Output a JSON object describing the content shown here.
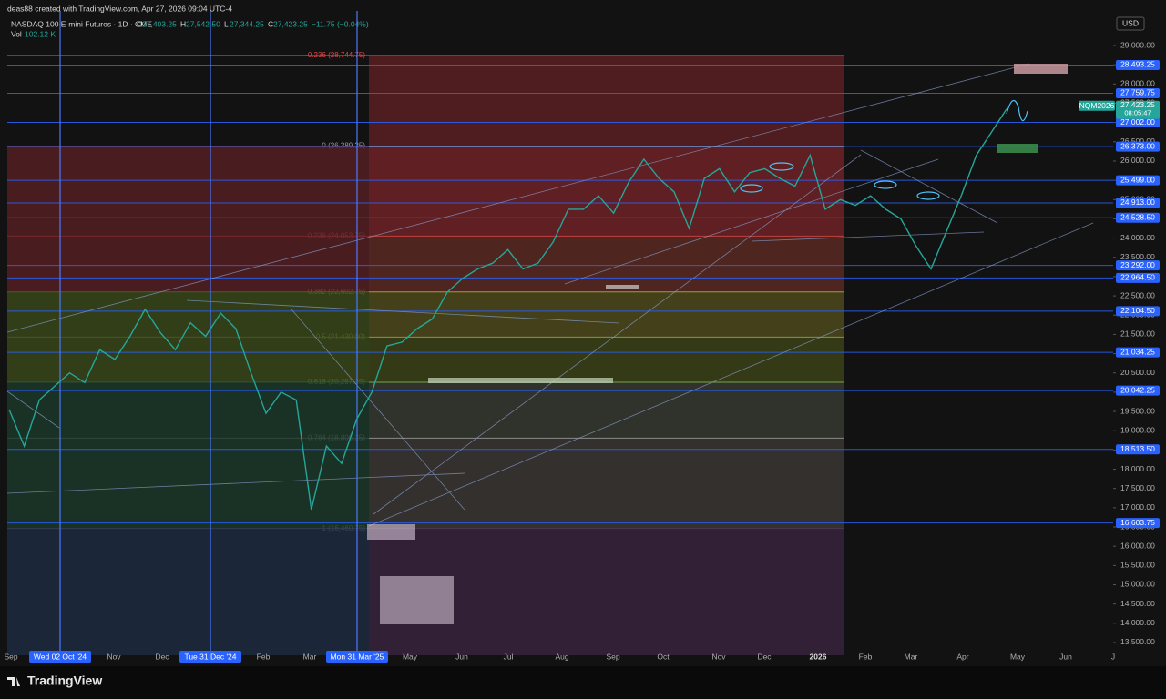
{
  "header": {
    "credit": "deas88 created with TradingView.com, Apr 27, 2026 09:04 UTC-4",
    "ohlc": [
      {
        "label": "O",
        "value": "27,403.25"
      },
      {
        "label": "H",
        "value": "27,542.50"
      },
      {
        "label": "L",
        "value": "27,344.25"
      },
      {
        "label": "C",
        "value": "27,423.25"
      }
    ],
    "change": "−11.75 (−0.04%)",
    "volume_label": "Vol",
    "volume": "102.12 K",
    "currency": "USD",
    "brand": "TradingView"
  },
  "chart_data": {
    "type": "line",
    "title": "NASDAQ 100 E-mini Futures · 1D · CME",
    "series": [
      {
        "name": "NQM2026",
        "color": "#26a69a",
        "values": [
          19550,
          18600,
          19800,
          20150,
          20500,
          20250,
          21100,
          20850,
          21450,
          22150,
          21550,
          21100,
          21800,
          21450,
          22050,
          21650,
          20500,
          19450,
          20000,
          19800,
          16950,
          18600,
          18150,
          19300,
          20000,
          21200,
          21300,
          21650,
          21900,
          22600,
          22950,
          23200,
          23350,
          23700,
          23200,
          23350,
          23900,
          24750,
          24750,
          25100,
          24650,
          25450,
          26050,
          25550,
          25200,
          24250,
          25550,
          25800,
          25200,
          25700,
          25800,
          25550,
          25350,
          26150,
          24750,
          25000,
          24850,
          25100,
          24750,
          24500,
          23800,
          23200,
          24150,
          25100,
          26150,
          26750,
          27350
        ]
      }
    ],
    "last_price": {
      "value": 27423.25,
      "label": "27,423.25"
    },
    "countdown": "08:05:47",
    "ylim": [
      13216,
      29898
    ],
    "yticks": [
      {
        "value": 13500,
        "label": "13,500.00"
      },
      {
        "value": 14000,
        "label": "14,000.00"
      },
      {
        "value": 14500,
        "label": "14,500.00"
      },
      {
        "value": 15000,
        "label": "15,000.00"
      },
      {
        "value": 15500,
        "label": "15,500.00"
      },
      {
        "value": 16000,
        "label": "16,000.00"
      },
      {
        "value": 16500,
        "label": "16,500.00"
      },
      {
        "value": 17000,
        "label": "17,000.00"
      },
      {
        "value": 17500,
        "label": "17,500.00"
      },
      {
        "value": 18000,
        "label": "18,000.00"
      },
      {
        "value": 18500,
        "label": "18,500.00"
      },
      {
        "value": 19000,
        "label": "19,000.00"
      },
      {
        "value": 19500,
        "label": "19,500.00"
      },
      {
        "value": 20000,
        "label": "20,000.00"
      },
      {
        "value": 20500,
        "label": "20,500.00"
      },
      {
        "value": 21000,
        "label": "21,000.00"
      },
      {
        "value": 21500,
        "label": "21,500.00"
      },
      {
        "value": 22000,
        "label": "22,000.00"
      },
      {
        "value": 22500,
        "label": "22,500.00"
      },
      {
        "value": 23000,
        "label": "23,000.00"
      },
      {
        "value": 23500,
        "label": "23,500.00"
      },
      {
        "value": 24000,
        "label": "24,000.00"
      },
      {
        "value": 24500,
        "label": "24,500.00"
      },
      {
        "value": 25000,
        "label": "25,000.00"
      },
      {
        "value": 25500,
        "label": "25,500.00"
      },
      {
        "value": 26000,
        "label": "26,000.00"
      },
      {
        "value": 26500,
        "label": "26,500.00"
      },
      {
        "value": 27000,
        "label": "27,000.00"
      },
      {
        "value": 27500,
        "label": "27,500.00"
      },
      {
        "value": 28000,
        "label": "28,000.00"
      },
      {
        "value": 28500,
        "label": "28,500.00"
      },
      {
        "value": 29000,
        "label": "29,000.00"
      }
    ],
    "levels": [
      {
        "value": 28493.25,
        "label": "28,493.25"
      },
      {
        "value": 27759.75,
        "label": "27,759.75"
      },
      {
        "value": 27002.0,
        "label": "27,002.00"
      },
      {
        "value": 26373.0,
        "label": "26,373.00"
      },
      {
        "value": 25499.0,
        "label": "25,499.00"
      },
      {
        "value": 24913.0,
        "label": "24,913.00"
      },
      {
        "value": 24528.5,
        "label": "24,528.50"
      },
      {
        "value": 23292.0,
        "label": "23,292.00"
      },
      {
        "value": 22964.5,
        "label": "22,964.50"
      },
      {
        "value": 22104.5,
        "label": "22,104.50"
      },
      {
        "value": 21034.25,
        "label": "21,034.25"
      },
      {
        "value": 20042.25,
        "label": "20,042.25"
      },
      {
        "value": 18513.5,
        "label": "18,513.50"
      },
      {
        "value": 16603.75,
        "label": "16,603.75"
      }
    ],
    "level_color": "#2962ff",
    "fib_levels": [
      {
        "value": 28744.75,
        "label": "-0.236 (28,744.75)",
        "color": "#e04848"
      },
      {
        "value": 26389.25,
        "label": "0 (26,389.25)",
        "color": "#9a9a9a"
      },
      {
        "value": 24053.75,
        "label": "0.236 (24,053.75)",
        "color": "#e04848"
      },
      {
        "value": 22602.75,
        "label": "0.382 (22,602.75)",
        "color": "#c8b040"
      },
      {
        "value": 21430.0,
        "label": "0.5 (21,430.00)",
        "color": "#9cb040"
      },
      {
        "value": 20257.25,
        "label": "0.618 (20,257.25)",
        "color": "#8bc34a"
      },
      {
        "value": 18806.25,
        "label": "0.764 (18,806.25)",
        "color": "#a0a0a0"
      },
      {
        "value": 16460.75,
        "label": "1 (16,460.75)",
        "color": "#a0a0a0"
      }
    ],
    "fib_band_colors": [
      "#5a1f23",
      "#6e2226",
      "#5a2a22",
      "#4e4a1c",
      "#3a4216",
      "#363a30",
      "#3a3632"
    ],
    "x_tick_labels": [
      "Sep",
      "Wed 02 Oct '24",
      "Nov",
      "Dec",
      "Tue 31 Dec '24",
      "Feb",
      "Mar",
      "Mon 31 Mar '25",
      "May",
      "Jun",
      "Jul",
      "Aug",
      "Sep",
      "Oct",
      "Nov",
      "Dec",
      "2026",
      "Feb",
      "Mar",
      "Apr",
      "May",
      "Jun",
      "J"
    ]
  }
}
